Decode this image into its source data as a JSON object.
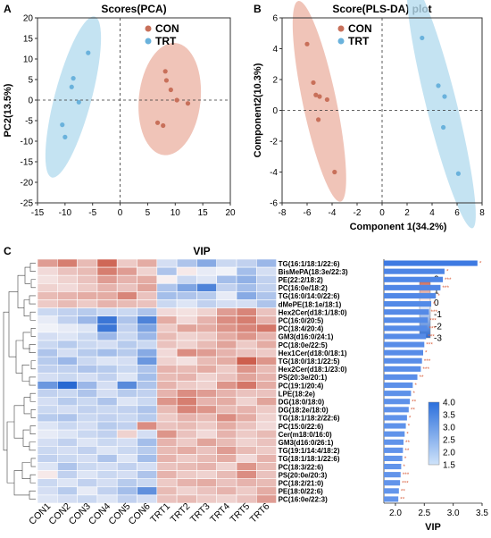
{
  "panels": {
    "a": {
      "letter": "A"
    },
    "b": {
      "letter": "B"
    },
    "c": {
      "letter": "C",
      "title": "VIP"
    }
  },
  "colors": {
    "con": "#c8705a",
    "trt": "#6ab2dc",
    "con_ellipse": "#ecb5a6",
    "trt_ellipse": "#b5dcef",
    "vip_bar": "#3d7ae0",
    "star": "#d9603f"
  },
  "chart_data": [
    {
      "type": "scatter",
      "title": "Scores(PCA)",
      "xlabel": "",
      "ylabel": "PC2(13.5%)",
      "xlim": [
        -15,
        20
      ],
      "ylim": [
        -25,
        20
      ],
      "xticks": [
        "-15",
        "-10",
        "-5",
        "0",
        "5",
        "10",
        "15",
        "20"
      ],
      "yticks": [
        "20",
        "15",
        "10",
        "5",
        "0",
        "-5",
        "-10",
        "-15",
        "-20",
        "-25"
      ],
      "reference_lines": "dashed lines at x=0 and y=0",
      "legend": "top-right",
      "series": [
        {
          "name": "CON",
          "points": [
            [
              8.2,
              7
            ],
            [
              8.4,
              4.8
            ],
            [
              9.2,
              2.5
            ],
            [
              10.3,
              0
            ],
            [
              12.3,
              -0.8
            ],
            [
              6.8,
              -5.5
            ],
            [
              7.8,
              -6.2
            ]
          ]
        },
        {
          "name": "TRT",
          "points": [
            [
              -5.8,
              11.5
            ],
            [
              -8.5,
              5.3
            ],
            [
              -8.8,
              3.2
            ],
            [
              -7.5,
              -0.5
            ],
            [
              -10.5,
              -6
            ],
            [
              -10,
              -9
            ]
          ]
        }
      ]
    },
    {
      "type": "scatter",
      "title": "Score(PLS-DA) plot",
      "xlabel": "Component 1(34.2%)",
      "ylabel": "Component2(10.3%)",
      "xlim": [
        -8,
        8
      ],
      "ylim": [
        -6,
        6
      ],
      "xticks": [
        "-8",
        "-6",
        "-4",
        "-2",
        "0",
        "2",
        "4",
        "6",
        "8"
      ],
      "yticks": [
        "6",
        "4",
        "2",
        "0",
        "-2",
        "-4",
        "-6"
      ],
      "reference_lines": "dashed lines at x=0 and y=0",
      "legend": "top-right",
      "series": [
        {
          "name": "CON",
          "points": [
            [
              -6,
              4.3
            ],
            [
              -5.5,
              1.8
            ],
            [
              -5.3,
              1
            ],
            [
              -5,
              0.9
            ],
            [
              -4.4,
              0.7
            ],
            [
              -5.1,
              -0.6
            ],
            [
              -3.8,
              -4
            ]
          ]
        },
        {
          "name": "TRT",
          "points": [
            [
              3.2,
              4.7
            ],
            [
              4.5,
              1.6
            ],
            [
              5,
              0.9
            ],
            [
              4.9,
              -1.1
            ],
            [
              6.1,
              -4.1
            ]
          ]
        }
      ]
    },
    {
      "type": "heatmap",
      "title": "VIP",
      "columns": [
        "CON1",
        "CON2",
        "CON3",
        "CON4",
        "CON5",
        "CON6",
        "TRT1",
        "TRT2",
        "TRT3",
        "TRT4",
        "TRT5",
        "TRT6"
      ],
      "rows": [
        "TG(16:1/18:1/22:6)",
        "BisMePA(18:3e/22:3)",
        "PE(22:2/18:2)",
        "PC(16:0e/18:2)",
        "TG(16:0/14:0/22:6)",
        "dMePE(18:1e/18:1)",
        "Hex2Cer(d18:1/18:0)",
        "PC(16:0/20:5)",
        "PC(18:4/20:4)",
        "GM3(d16:0/24:1)",
        "PC(18:0e/22:5)",
        "Hex1Cer(d18:0/18:1)",
        "TG(18:0/18:1/22:5)",
        "Hex2Cer(d18:1/23:0)",
        "PS(20:3e/20:1)",
        "PC(19:1/20:4)",
        "LPE(18:2e)",
        "DG(18:0/18:0)",
        "DG(18:2e/18:0)",
        "TG(18:1/18:2/22:6)",
        "PC(15:0/22:6)",
        "Cer(m18:0/16:0)",
        "GM3(d16:0/26:1)",
        "TG(19:1/14:4/18:2)",
        "TG(18:1/18:1/22:6)",
        "PC(18:3/22:6)",
        "PS(20:0e/20:3)",
        "PC(18:2/21:0)",
        "PE(18:0/22:6)",
        "PC(16:0e/22:3)"
      ],
      "values": [
        [
          1.2,
          1.6,
          0.8,
          1.9,
          0.6,
          1.0,
          -0.4,
          -0.8,
          -1.2,
          -0.5,
          -0.6,
          -1.0
        ],
        [
          0.4,
          0.7,
          0.8,
          1.6,
          1.2,
          0.5,
          -0.8,
          0.2,
          -0.2,
          -0.1,
          -0.9,
          -0.4
        ],
        [
          0.3,
          0.5,
          0.7,
          1.2,
          0.9,
          1.0,
          0.1,
          -0.5,
          -0.3,
          -0.9,
          -1.1,
          -0.6
        ],
        [
          0.5,
          0.4,
          0.6,
          0.9,
          0.7,
          1.1,
          -0.8,
          -1.3,
          -1.8,
          -0.6,
          -0.9,
          -0.6
        ],
        [
          0.8,
          0.9,
          1.0,
          1.0,
          1.5,
          0.7,
          -0.9,
          -0.8,
          -0.7,
          -0.2,
          -1.2,
          -0.8
        ],
        [
          0.6,
          0.8,
          0.6,
          0.9,
          0.8,
          0.7,
          -0.5,
          -0.3,
          -0.6,
          -0.4,
          -0.4,
          -0.8
        ],
        [
          -0.5,
          -0.6,
          -0.7,
          -0.5,
          -0.5,
          -0.8,
          0.4,
          0.3,
          0.5,
          1.2,
          1.5,
          0.7
        ],
        [
          -0.2,
          -0.6,
          -1.0,
          -2.0,
          -0.8,
          -1.8,
          1.0,
          0.4,
          0.9,
          1.4,
          1.6,
          0.9
        ],
        [
          -0.1,
          -0.2,
          -0.3,
          -2.0,
          -0.6,
          -1.3,
          0.6,
          1.1,
          1.0,
          1.3,
          1.5,
          1.7
        ],
        [
          -0.4,
          -0.3,
          -0.5,
          -1.0,
          -0.5,
          -1.0,
          0.8,
          0.5,
          0.6,
          1.0,
          1.3,
          0.9
        ],
        [
          -0.5,
          -0.7,
          -0.5,
          -0.4,
          -0.7,
          -0.5,
          0.7,
          0.5,
          0.8,
          1.1,
          0.6,
          1.0
        ],
        [
          -0.8,
          -0.4,
          -0.7,
          -0.9,
          -0.7,
          -1.2,
          0.4,
          1.4,
          1.2,
          0.9,
          0.7,
          0.6
        ],
        [
          -0.7,
          -1.0,
          -0.5,
          -0.3,
          -0.4,
          -1.5,
          0.5,
          0.3,
          0.8,
          1.0,
          2.0,
          1.3
        ],
        [
          -0.6,
          -0.6,
          -0.8,
          -0.7,
          -0.5,
          -0.8,
          0.9,
          0.8,
          1.0,
          0.6,
          1.3,
          0.8
        ],
        [
          -0.4,
          -0.5,
          -0.4,
          -0.6,
          -0.3,
          -0.9,
          0.8,
          0.9,
          0.5,
          0.7,
          1.1,
          0.9
        ],
        [
          -1.5,
          -2.6,
          -1.0,
          -0.4,
          -1.7,
          -0.8,
          0.9,
          0.6,
          0.5,
          1.3,
          1.7,
          1.0
        ],
        [
          -0.6,
          -0.5,
          -0.8,
          -0.4,
          -0.7,
          -0.6,
          0.9,
          1.4,
          1.2,
          0.9,
          0.7,
          0.7
        ],
        [
          -0.4,
          -0.7,
          -0.5,
          -0.8,
          -0.3,
          -0.5,
          1.3,
          1.6,
          0.9,
          1.0,
          0.5,
          1.1
        ],
        [
          -0.5,
          -0.4,
          -0.6,
          -0.5,
          -0.6,
          -0.8,
          0.8,
          1.5,
          1.3,
          0.8,
          0.9,
          0.6
        ],
        [
          -0.7,
          -0.8,
          -0.5,
          -0.6,
          -0.5,
          -0.7,
          0.6,
          0.9,
          0.8,
          1.4,
          1.0,
          0.5
        ],
        [
          -0.3,
          -0.5,
          -0.4,
          -0.7,
          -0.6,
          1.4,
          0.7,
          0.8,
          0.6,
          1.0,
          0.7,
          0.4
        ],
        [
          -0.2,
          -0.3,
          -0.5,
          -0.6,
          0.5,
          -0.4,
          1.3,
          0.7,
          0.4,
          0.9,
          0.6,
          0.8
        ],
        [
          -0.4,
          -0.6,
          -0.3,
          -0.5,
          -0.4,
          -0.9,
          0.9,
          0.6,
          1.1,
          0.8,
          0.5,
          0.7
        ],
        [
          -0.5,
          -0.4,
          -0.6,
          -0.3,
          -0.5,
          -0.7,
          0.8,
          1.0,
          0.7,
          1.2,
          0.8,
          0.6
        ],
        [
          -0.6,
          -0.5,
          -0.4,
          -0.8,
          -0.3,
          -0.9,
          0.9,
          0.6,
          0.8,
          1.0,
          0.4,
          0.9
        ],
        [
          -0.3,
          -0.8,
          -0.5,
          -0.4,
          -0.6,
          -0.4,
          0.7,
          0.8,
          0.9,
          0.5,
          1.3,
          0.8
        ],
        [
          0.2,
          -0.6,
          -0.3,
          -0.5,
          -0.4,
          -0.8,
          0.9,
          0.6,
          0.5,
          0.8,
          1.4,
          0.7
        ],
        [
          -0.5,
          -0.3,
          -0.6,
          -0.4,
          -0.7,
          -0.5,
          0.6,
          0.9,
          1.0,
          0.7,
          0.9,
          0.8
        ],
        [
          -0.4,
          -0.7,
          -0.2,
          -0.6,
          -0.9,
          -1.6,
          0.8,
          0.5,
          0.7,
          0.9,
          0.6,
          1.0
        ],
        [
          -0.3,
          -0.4,
          -0.5,
          -0.3,
          -0.6,
          -0.4,
          0.7,
          0.8,
          0.6,
          0.5,
          0.7,
          1.2
        ]
      ],
      "colorbar": {
        "range": [
          -3,
          2
        ],
        "ticks": [
          "2",
          "1",
          "0",
          "-1",
          "-2",
          "-3"
        ]
      }
    },
    {
      "type": "bar",
      "orientation": "horizontal",
      "xlabel": "VIP",
      "xlim": [
        1.8,
        3.5
      ],
      "xticks": [
        "2.0",
        "2.5",
        "3.0",
        "3.5"
      ],
      "categories": [
        "TG(16:1/18:1/22:6)",
        "BisMePA(18:3e/22:3)",
        "PE(22:2/18:2)",
        "PC(16:0e/18:2)",
        "TG(16:0/14:0/22:6)",
        "dMePE(18:1e/18:1)",
        "Hex2Cer(d18:1/18:0)",
        "PC(16:0/20:5)",
        "PC(18:4/20:4)",
        "GM3(d16:0/24:1)",
        "PC(18:0e/22:5)",
        "Hex1Cer(d18:0/18:1)",
        "TG(18:0/18:1/22:5)",
        "Hex2Cer(d18:1/23:0)",
        "PS(20:3e/20:1)",
        "PC(19:1/20:4)",
        "LPE(18:2e)",
        "DG(18:0/18:0)",
        "DG(18:2e/18:0)",
        "TG(18:1/18:2/22:6)",
        "PC(15:0/22:6)",
        "Cer(m18:0/16:0)",
        "GM3(d16:0/26:1)",
        "TG(19:1/14:4/18:2)",
        "TG(18:1/18:1/22:6)",
        "PC(18:3/22:6)",
        "PS(20:0e/20:3)",
        "PC(18:2/21:0)",
        "PE(18:0/22:6)",
        "PC(16:0e/22:3)"
      ],
      "values": [
        3.42,
        2.85,
        2.82,
        2.78,
        2.7,
        2.62,
        2.58,
        2.56,
        2.55,
        2.53,
        2.5,
        2.48,
        2.46,
        2.44,
        2.38,
        2.3,
        2.27,
        2.25,
        2.23,
        2.2,
        2.18,
        2.16,
        2.14,
        2.13,
        2.12,
        2.1,
        2.09,
        2.08,
        2.06,
        2.05
      ],
      "significance": [
        "*",
        "*",
        "***",
        "***",
        "*",
        "*",
        "***",
        "***",
        "***",
        "***",
        "***",
        "*",
        "***",
        "***",
        "**",
        "*",
        "*",
        "**",
        "**",
        "*",
        "*",
        "*",
        "**",
        "**",
        "*",
        "*",
        "***",
        "***",
        "**",
        "**"
      ],
      "colorbar": {
        "range": [
          1.5,
          4.0
        ],
        "ticks": [
          "4.0",
          "3.5",
          "3.0",
          "2.5",
          "2.0",
          "1.5"
        ]
      }
    }
  ]
}
